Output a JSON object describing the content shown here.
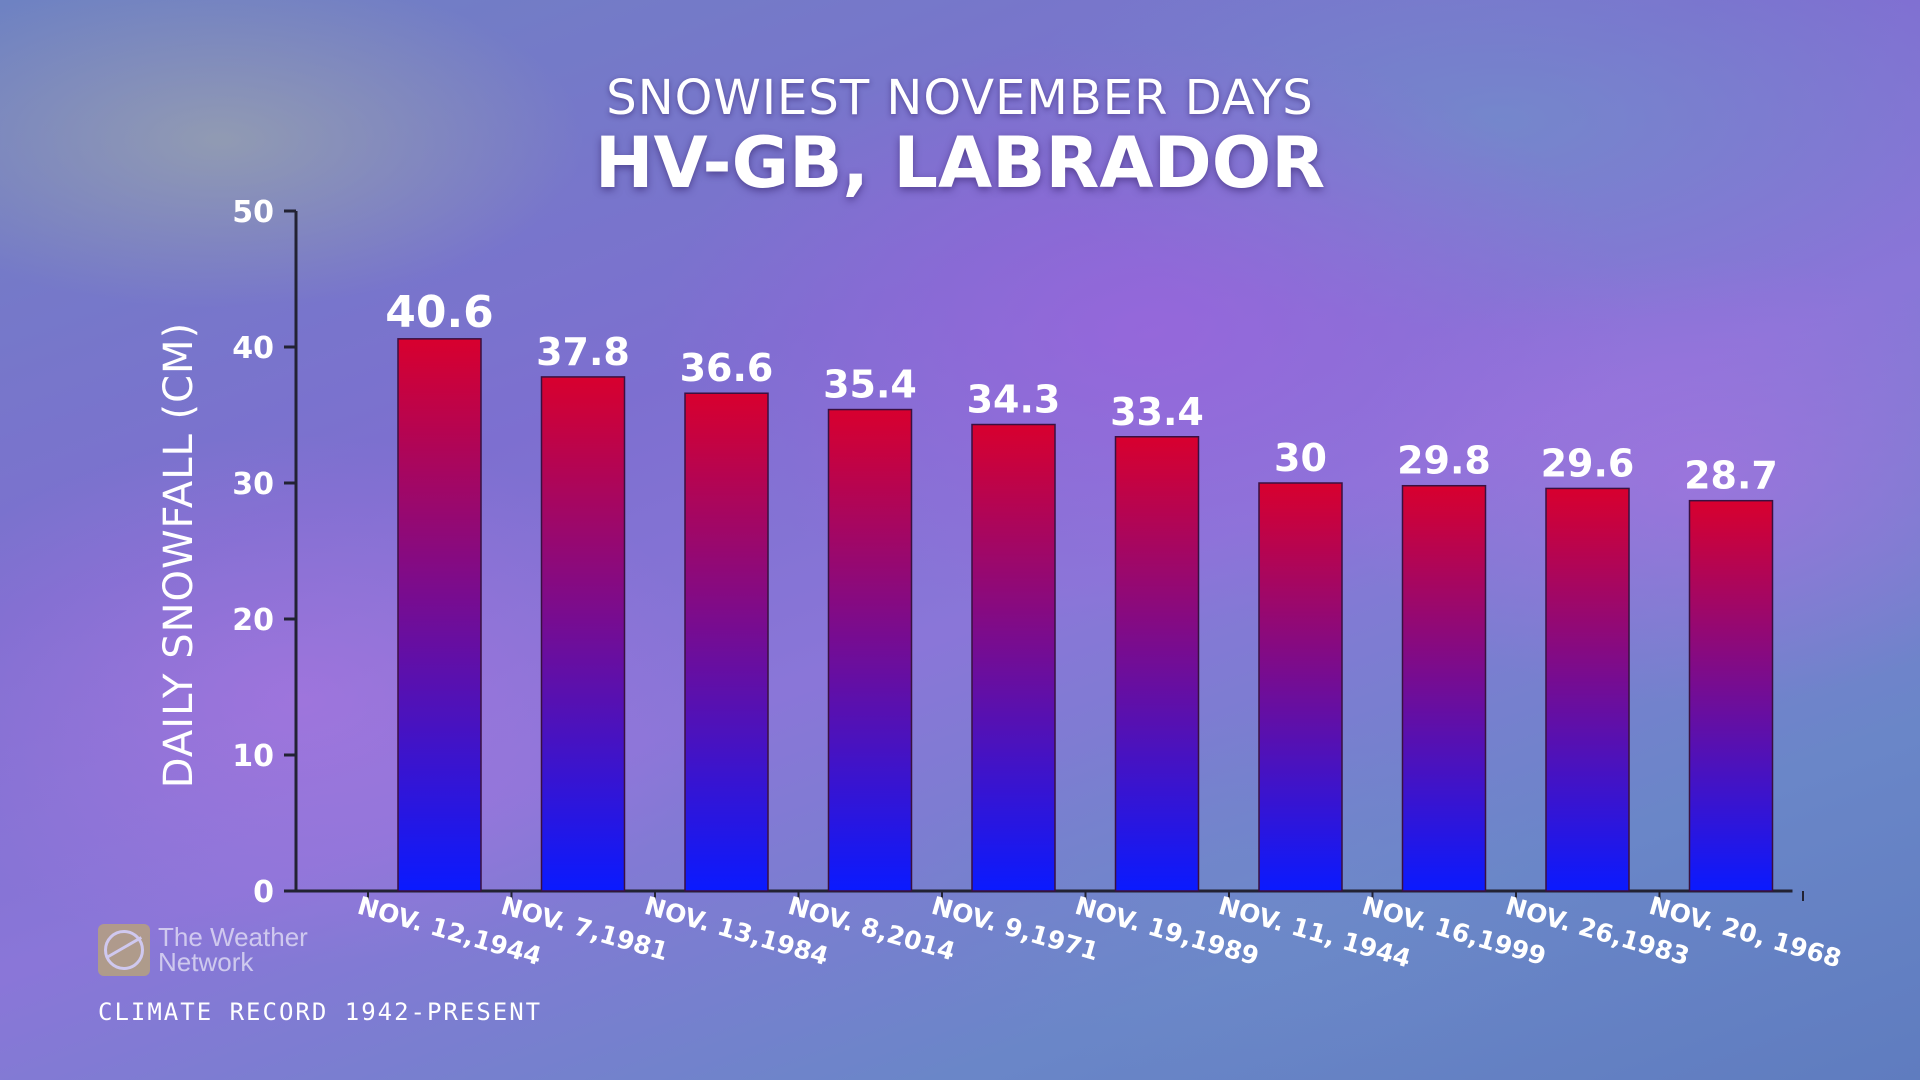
{
  "title": {
    "line1": "SNOWIEST NOVEMBER DAYS",
    "line2": "HV-GB, LABRADOR"
  },
  "footer": {
    "climate_record": "CLIMATE RECORD 1942-PRESENT"
  },
  "logo": {
    "line1": "The Weather",
    "line2": "Network",
    "icon": "globe-icon"
  },
  "colors": {
    "bar_top": "#d8002e",
    "bar_bottom": "#0a1aff",
    "text": "#ffffff"
  },
  "chart_data": {
    "type": "bar",
    "title": "SNOWIEST NOVEMBER DAYS",
    "subtitle": "HV-GB, LABRADOR",
    "xlabel": "",
    "ylabel": "DAILY SNOWFALL (CM)",
    "ylim": [
      0,
      50
    ],
    "yticks": [
      0,
      10,
      20,
      30,
      40,
      50
    ],
    "grid": false,
    "categories": [
      "NOV. 12,1944",
      "NOV. 7,1981",
      "NOV. 13,1984",
      "NOV. 8,2014",
      "NOV. 9,1971",
      "NOV. 19,1989",
      "NOV. 11, 1944",
      "NOV. 16,1999",
      "NOV. 26,1983",
      "NOV. 20, 1968"
    ],
    "values": [
      40.6,
      37.8,
      36.6,
      35.4,
      34.3,
      33.4,
      30,
      29.8,
      29.6,
      28.7
    ],
    "value_labels": [
      "40.6",
      "37.8",
      "36.6",
      "35.4",
      "34.3",
      "33.4",
      "30",
      "29.8",
      "29.6",
      "28.7"
    ]
  }
}
